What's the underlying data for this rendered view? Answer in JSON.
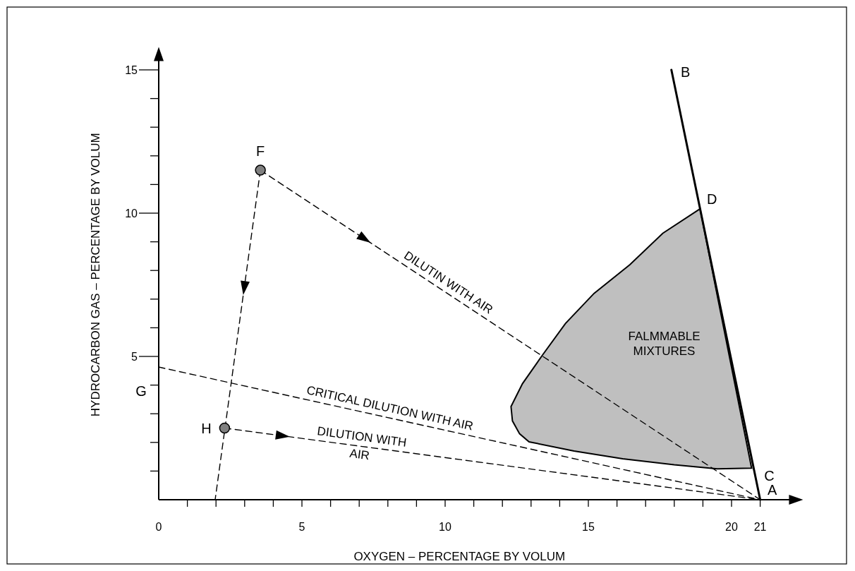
{
  "chart_data": {
    "type": "line",
    "xlabel": "OXYGEN – PERCENTAGE BY VOLUM",
    "ylabel": "HYDROCARBON GAS – PERCENTAGE BY VOLUM",
    "xlim": [
      0,
      22.4
    ],
    "ylim": [
      0,
      15.7
    ],
    "xticks": [
      0,
      {
        "value": 1,
        "label": null
      },
      {
        "value": 2,
        "label": null
      },
      {
        "value": 3,
        "label": null
      },
      {
        "value": 4,
        "label": null
      },
      5,
      {
        "value": 6,
        "label": null
      },
      {
        "value": 7,
        "label": null
      },
      {
        "value": 8,
        "label": null
      },
      {
        "value": 9,
        "label": null
      },
      10,
      {
        "value": 11,
        "label": null
      },
      {
        "value": 12,
        "label": null
      },
      {
        "value": 13,
        "label": null
      },
      {
        "value": 14,
        "label": null
      },
      15,
      {
        "value": 16,
        "label": null
      },
      {
        "value": 17,
        "label": null
      },
      {
        "value": 18,
        "label": null
      },
      {
        "value": 19,
        "label": null
      },
      20,
      21
    ],
    "yticks": [
      {
        "value": 1,
        "label": null
      },
      {
        "value": 2,
        "label": null
      },
      {
        "value": 3,
        "label": null
      },
      {
        "value": 4,
        "label": null
      },
      5,
      {
        "value": 6,
        "label": null
      },
      {
        "value": 7,
        "label": null
      },
      {
        "value": 8,
        "label": null
      },
      {
        "value": 9,
        "label": null
      },
      10,
      {
        "value": 11,
        "label": null
      },
      {
        "value": 12,
        "label": null
      },
      {
        "value": 13,
        "label": null
      },
      {
        "value": 14,
        "label": null
      },
      15
    ],
    "grid": false,
    "legend": false,
    "series": [
      {
        "name": "FALMMABLE MIXTURES",
        "type": "area",
        "color": "#bfbfbf",
        "x": [
          18.9,
          17.6,
          16.45,
          15.2,
          14.2,
          13.4,
          12.7,
          12.3,
          12.35,
          12.6,
          12.93,
          14.5,
          16.2,
          18,
          19.5,
          20.7,
          18.9
        ],
        "values": [
          10.15,
          9.3,
          8.2,
          7.2,
          6.15,
          5.05,
          4.05,
          3.25,
          2.75,
          2.3,
          2.02,
          1.7,
          1.43,
          1.22,
          1.08,
          1.1,
          10.15
        ]
      },
      {
        "line_style": "dashed",
        "color": "#000000",
        "x": [
          3.55,
          21
        ],
        "values": [
          11.5,
          0
        ]
      },
      {
        "line_style": "dashed",
        "color": "#000000",
        "x": [
          3.55,
          1.97
        ],
        "values": [
          11.5,
          0
        ]
      },
      {
        "line_style": "dashed",
        "color": "#000000",
        "x": [
          2.3,
          21
        ],
        "values": [
          2.5,
          0
        ]
      },
      {
        "line_style": "dashed",
        "color": "#000000",
        "x": [
          0,
          21
        ],
        "values": [
          4.63,
          0
        ]
      },
      {
        "name": "B",
        "line_style": "solid",
        "color": "#000000",
        "x": [
          17.9,
          21
        ],
        "values": [
          15,
          0
        ]
      },
      {
        "name": "F",
        "type": "scatter",
        "marker": "circle",
        "color": "#808080",
        "x": [
          3.55
        ],
        "values": [
          11.5
        ]
      },
      {
        "name": "H",
        "type": "scatter",
        "marker": "circle",
        "color": "#808080",
        "x": [
          2.3
        ],
        "values": [
          2.5
        ]
      }
    ],
    "annotations": [
      {
        "text": "G",
        "x": 0,
        "y": 4.63
      },
      {
        "text": "D",
        "x": 18.9,
        "y": 10.15
      },
      {
        "text": "C",
        "x": 20.9,
        "y": 0.5
      },
      {
        "text": "A",
        "x": 21,
        "y": 0
      },
      {
        "text": "DILUTIN WITH AIR",
        "x": 9.93,
        "y": 7.3
      },
      {
        "text": "CRITICAL DILUTION WITH AIR",
        "x": 8.0,
        "y": 2.87
      },
      {
        "text": "DILUTION WITH\nAIR",
        "x": 7.05,
        "y": 1.865
      }
    ]
  }
}
